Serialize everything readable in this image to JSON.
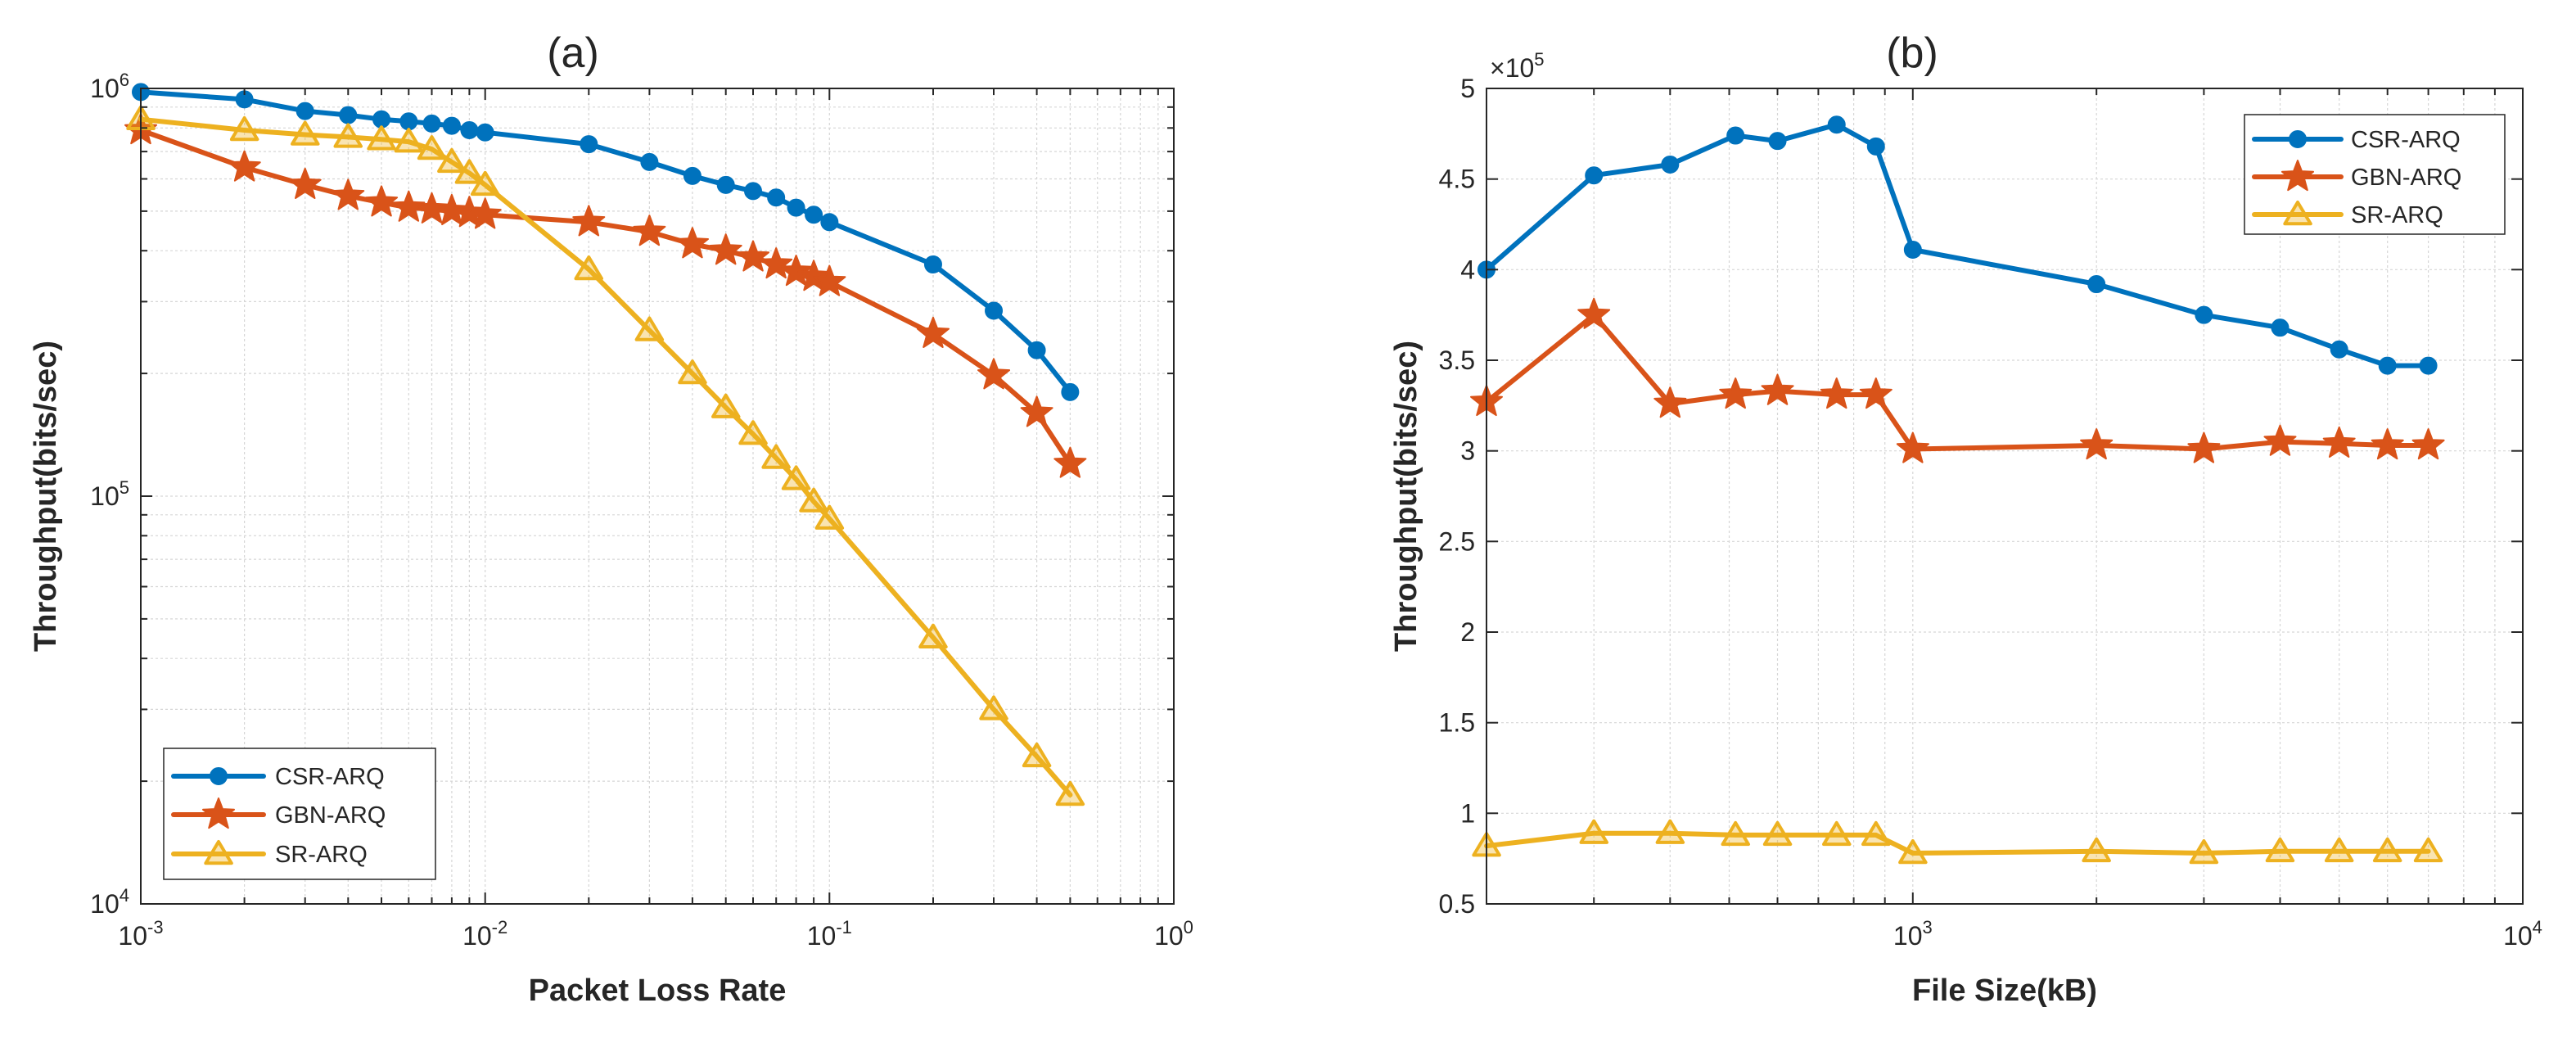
{
  "chart_data": [
    {
      "id": "a",
      "type": "line",
      "title": "(a)",
      "xlabel": "Packet Loss Rate",
      "ylabel": "Throughput(bits/sec)",
      "xscale": "log",
      "yscale": "log",
      "xlim": [
        0.001,
        1
      ],
      "ylim": [
        10000,
        1000000
      ],
      "grid": true,
      "x_ticks": [
        {
          "value": 0.001,
          "base": "10",
          "exp": "-3"
        },
        {
          "value": 0.01,
          "base": "10",
          "exp": "-2"
        },
        {
          "value": 0.1,
          "base": "10",
          "exp": "-1"
        },
        {
          "value": 1,
          "base": "10",
          "exp": "0"
        }
      ],
      "y_ticks": [
        {
          "value": 10000,
          "base": "10",
          "exp": "4"
        },
        {
          "value": 100000,
          "base": "10",
          "exp": "5"
        },
        {
          "value": 1000000,
          "base": "10",
          "exp": "6"
        }
      ],
      "legend_position": "bottom-left",
      "series": [
        {
          "name": "CSR-ARQ",
          "color": "#0072BD",
          "marker": "circle",
          "x": [
            0.001,
            0.002,
            0.003,
            0.004,
            0.005,
            0.006,
            0.007,
            0.008,
            0.009,
            0.01,
            0.02,
            0.03,
            0.04,
            0.05,
            0.06,
            0.07,
            0.08,
            0.09,
            0.1,
            0.2,
            0.3,
            0.4,
            0.5
          ],
          "y": [
            980000,
            940000,
            880000,
            860000,
            840000,
            830000,
            820000,
            810000,
            790000,
            780000,
            730000,
            660000,
            610000,
            580000,
            560000,
            540000,
            510000,
            490000,
            470000,
            370000,
            285000,
            228000,
            180000
          ]
        },
        {
          "name": "GBN-ARQ",
          "color": "#D95319",
          "marker": "star",
          "x": [
            0.001,
            0.002,
            0.003,
            0.004,
            0.005,
            0.006,
            0.007,
            0.008,
            0.009,
            0.01,
            0.02,
            0.03,
            0.04,
            0.05,
            0.06,
            0.07,
            0.08,
            0.09,
            0.1,
            0.2,
            0.3,
            0.4,
            0.5
          ],
          "y": [
            790000,
            640000,
            580000,
            545000,
            525000,
            510000,
            505000,
            500000,
            495000,
            490000,
            470000,
            445000,
            415000,
            400000,
            385000,
            370000,
            355000,
            345000,
            335000,
            250000,
            198000,
            160000,
            120000
          ]
        },
        {
          "name": "SR-ARQ",
          "color": "#EDB120",
          "marker": "triangle",
          "x": [
            0.001,
            0.002,
            0.003,
            0.004,
            0.005,
            0.006,
            0.007,
            0.008,
            0.009,
            0.01,
            0.02,
            0.03,
            0.04,
            0.05,
            0.06,
            0.07,
            0.08,
            0.09,
            0.1,
            0.2,
            0.3,
            0.4,
            0.5
          ],
          "y": [
            840000,
            790000,
            770000,
            760000,
            750000,
            740000,
            710000,
            660000,
            620000,
            580000,
            360000,
            255000,
            200000,
            165000,
            142000,
            124000,
            110000,
            97000,
            88000,
            45000,
            30000,
            23000,
            18500
          ]
        }
      ]
    },
    {
      "id": "b",
      "type": "line",
      "title": "(b)",
      "xlabel": "File Size(kB)",
      "ylabel": "Throughput(bits/sec)",
      "xscale": "log",
      "yscale": "linear",
      "xlim": [
        200,
        10000
      ],
      "ylim": [
        50000,
        500000
      ],
      "grid": true,
      "x_ticks": [
        {
          "value": 1000,
          "base": "10",
          "exp": "3"
        },
        {
          "value": 10000,
          "base": "10",
          "exp": "4"
        }
      ],
      "y_ticks": [
        {
          "value": 50000,
          "label": "0.5"
        },
        {
          "value": 100000,
          "label": "1"
        },
        {
          "value": 150000,
          "label": "1.5"
        },
        {
          "value": 200000,
          "label": "2"
        },
        {
          "value": 250000,
          "label": "2.5"
        },
        {
          "value": 300000,
          "label": "3"
        },
        {
          "value": 350000,
          "label": "3.5"
        },
        {
          "value": 400000,
          "label": "4"
        },
        {
          "value": 450000,
          "label": "4.5"
        },
        {
          "value": 500000,
          "label": "5"
        }
      ],
      "y_multiplier": {
        "prefix": "×10",
        "exp": "5"
      },
      "legend_position": "top-right",
      "series": [
        {
          "name": "CSR-ARQ",
          "color": "#0072BD",
          "marker": "circle",
          "x": [
            200,
            300,
            400,
            512,
            600,
            750,
            870,
            1000,
            2000,
            3000,
            4000,
            5000,
            6000,
            7000
          ],
          "y": [
            400000,
            452000,
            458000,
            474000,
            471000,
            480000,
            468000,
            411000,
            392000,
            375000,
            368000,
            356000,
            347000,
            347000
          ]
        },
        {
          "name": "GBN-ARQ",
          "color": "#D95319",
          "marker": "star",
          "x": [
            200,
            300,
            400,
            512,
            600,
            750,
            870,
            1000,
            2000,
            3000,
            4000,
            5000,
            6000,
            7000
          ],
          "y": [
            327000,
            375000,
            326000,
            331000,
            333000,
            331000,
            331000,
            301000,
            303000,
            301000,
            305000,
            304000,
            303000,
            303000
          ]
        },
        {
          "name": "SR-ARQ",
          "color": "#EDB120",
          "marker": "triangle",
          "x": [
            200,
            300,
            400,
            512,
            600,
            750,
            870,
            1000,
            2000,
            3000,
            4000,
            5000,
            6000,
            7000
          ],
          "y": [
            82000,
            89000,
            89000,
            88000,
            88000,
            88000,
            88000,
            78000,
            79000,
            78000,
            79000,
            79000,
            79000,
            79000
          ]
        }
      ]
    }
  ]
}
